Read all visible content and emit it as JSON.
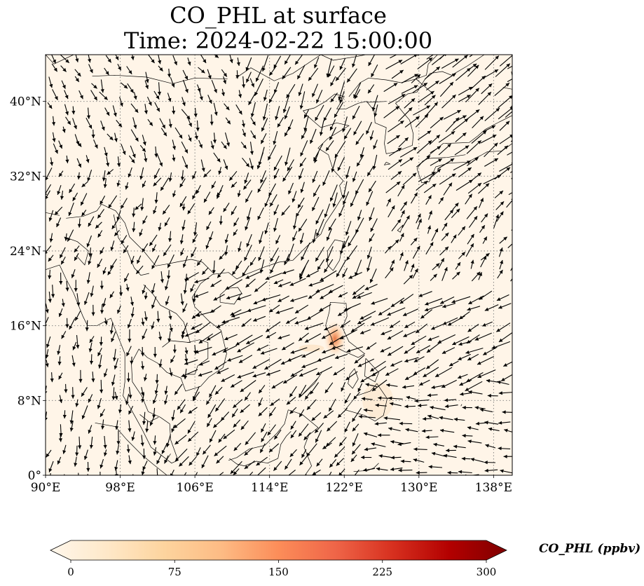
{
  "title": {
    "line1": "CO_PHL at surface",
    "line2": "Time: 2024-02-22 15:00:00"
  },
  "map": {
    "projection": "PlateCarree",
    "lon_range": [
      90,
      140
    ],
    "lat_range": [
      0,
      45
    ],
    "background_color": "#fff5e8",
    "gridlines": "dotted",
    "lon_ticks": [
      {
        "value": 90,
        "label": "90°E"
      },
      {
        "value": 98,
        "label": "98°E"
      },
      {
        "value": 106,
        "label": "106°E"
      },
      {
        "value": 114,
        "label": "114°E"
      },
      {
        "value": 122,
        "label": "122°E"
      },
      {
        "value": 130,
        "label": "130°E"
      },
      {
        "value": 138,
        "label": "138°E"
      }
    ],
    "lat_ticks": [
      {
        "value": 0,
        "label": "0°"
      },
      {
        "value": 8,
        "label": "8°N"
      },
      {
        "value": 16,
        "label": "16°N"
      },
      {
        "value": 24,
        "label": "24°N"
      },
      {
        "value": 32,
        "label": "32°N"
      },
      {
        "value": 40,
        "label": "40°N"
      }
    ],
    "hotspot": {
      "lon": 121,
      "lat": 14.6
    }
  },
  "colorbar": {
    "label": "CO_PHL (ppbv)",
    "colormap": "OrRd",
    "colors": [
      "#fff7ec",
      "#fee8c8",
      "#fdd49e",
      "#fdbb84",
      "#fc8d59",
      "#ef6548",
      "#d7301f",
      "#b30000",
      "#7f0000"
    ],
    "min": 0,
    "max": 300,
    "extend": "both",
    "ticks": [
      {
        "value": 0,
        "label": "0"
      },
      {
        "value": 75,
        "label": "75"
      },
      {
        "value": 150,
        "label": "150"
      },
      {
        "value": 225,
        "label": "225"
      },
      {
        "value": 300,
        "label": "300"
      }
    ]
  }
}
